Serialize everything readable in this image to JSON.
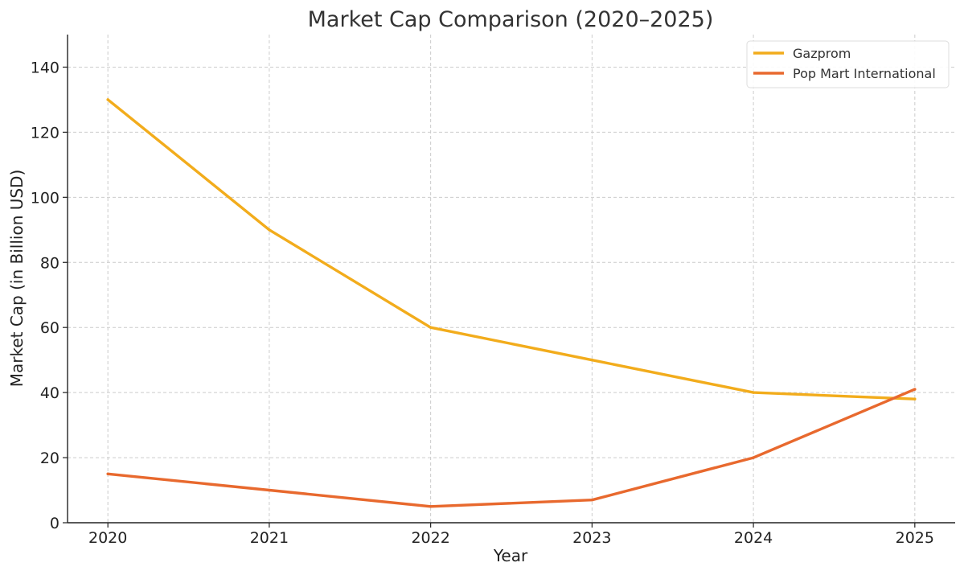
{
  "chart_data": {
    "type": "line",
    "title": "Market Cap Comparison (2020–2025)",
    "xlabel": "Year",
    "ylabel": "Market Cap (in Billion USD)",
    "categories": [
      "2020",
      "2021",
      "2022",
      "2023",
      "2024",
      "2025"
    ],
    "x": [
      2020,
      2021,
      2022,
      2023,
      2024,
      2025
    ],
    "xlim": [
      2019.75,
      2025.25
    ],
    "ylim": [
      0,
      150
    ],
    "yticks": [
      0,
      20,
      40,
      60,
      80,
      100,
      120,
      140
    ],
    "grid": true,
    "legend_position": "top-right",
    "series": [
      {
        "name": "Gazprom",
        "color": "#f2ac1c",
        "values": [
          130,
          90,
          60,
          50,
          40,
          38
        ]
      },
      {
        "name": "Pop Mart International",
        "color": "#e8692e",
        "values": [
          15,
          10,
          5,
          7,
          20,
          41
        ]
      }
    ]
  }
}
